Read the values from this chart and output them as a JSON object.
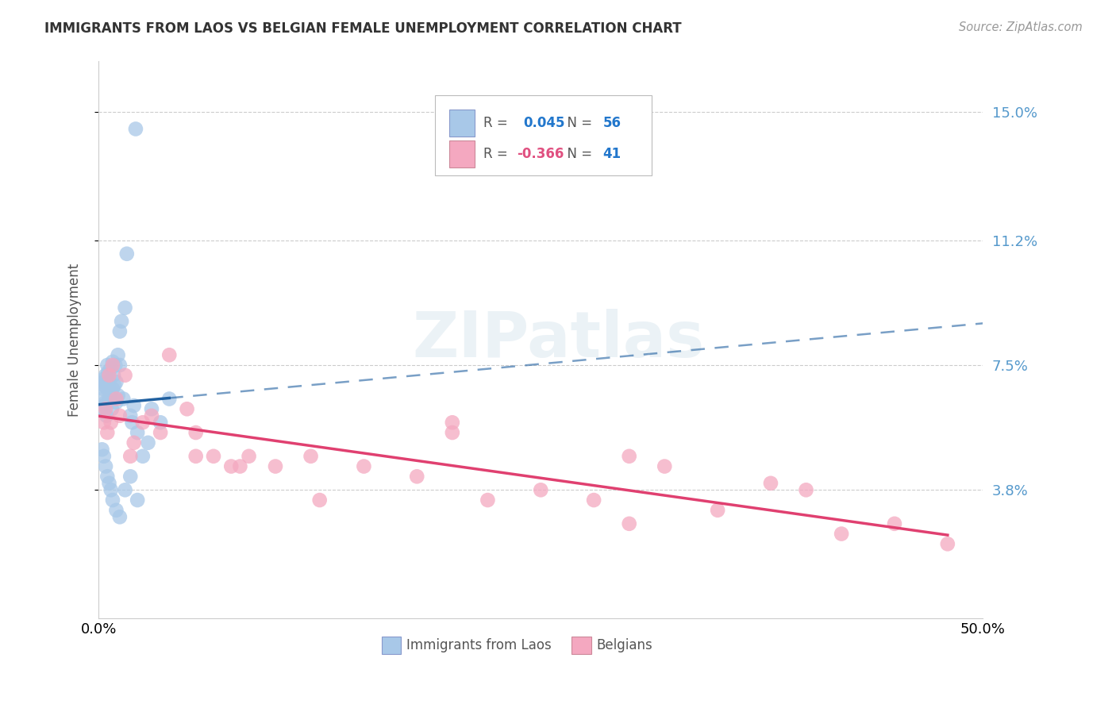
{
  "title": "IMMIGRANTS FROM LAOS VS BELGIAN FEMALE UNEMPLOYMENT CORRELATION CHART",
  "source": "Source: ZipAtlas.com",
  "ylabel": "Female Unemployment",
  "ytick_labels": [
    "3.8%",
    "7.5%",
    "11.2%",
    "15.0%"
  ],
  "ytick_values": [
    3.8,
    7.5,
    11.2,
    15.0
  ],
  "xlim": [
    0.0,
    50.0
  ],
  "ylim": [
    0.0,
    16.5
  ],
  "legend_blue_r": "0.045",
  "legend_blue_n": "56",
  "legend_pink_r": "-0.366",
  "legend_pink_n": "41",
  "legend_blue_label": "Immigrants from Laos",
  "legend_pink_label": "Belgians",
  "blue_color": "#a8c8e8",
  "pink_color": "#f4a8c0",
  "blue_line_color": "#2060a0",
  "pink_line_color": "#e04070",
  "watermark": "ZIPatlas",
  "background_color": "#ffffff",
  "blue_x": [
    0.15,
    0.2,
    0.25,
    0.3,
    0.3,
    0.35,
    0.35,
    0.4,
    0.4,
    0.45,
    0.5,
    0.5,
    0.55,
    0.6,
    0.6,
    0.65,
    0.7,
    0.7,
    0.75,
    0.8,
    0.8,
    0.85,
    0.9,
    0.95,
    1.0,
    1.0,
    1.1,
    1.2,
    1.2,
    1.3,
    1.4,
    1.5,
    1.6,
    1.8,
    1.9,
    2.0,
    2.1,
    2.2,
    2.5,
    2.8,
    0.2,
    0.3,
    0.4,
    0.5,
    0.6,
    0.7,
    0.8,
    1.0,
    1.2,
    1.5,
    1.8,
    2.2,
    3.0,
    3.5,
    4.0,
    1.1
  ],
  "blue_y": [
    6.2,
    6.5,
    6.8,
    6.9,
    7.0,
    7.1,
    6.3,
    6.4,
    7.2,
    6.0,
    7.5,
    6.8,
    7.3,
    6.5,
    7.0,
    6.6,
    6.7,
    7.4,
    6.2,
    6.8,
    7.6,
    7.2,
    6.9,
    7.5,
    7.0,
    6.4,
    7.8,
    7.5,
    8.5,
    8.8,
    6.5,
    9.2,
    10.8,
    6.0,
    5.8,
    6.3,
    14.5,
    5.5,
    4.8,
    5.2,
    5.0,
    4.8,
    4.5,
    4.2,
    4.0,
    3.8,
    3.5,
    3.2,
    3.0,
    3.8,
    4.2,
    3.5,
    6.2,
    5.8,
    6.5,
    6.6
  ],
  "pink_x": [
    0.3,
    0.4,
    0.5,
    0.6,
    0.7,
    0.8,
    1.0,
    1.2,
    1.5,
    1.8,
    2.0,
    2.5,
    3.0,
    3.5,
    4.0,
    5.0,
    5.5,
    6.5,
    7.5,
    8.5,
    10.0,
    12.0,
    15.0,
    18.0,
    20.0,
    22.0,
    25.0,
    28.0,
    30.0,
    32.0,
    35.0,
    38.0,
    40.0,
    42.0,
    45.0,
    48.0,
    5.5,
    8.0,
    12.5,
    20.0,
    30.0
  ],
  "pink_y": [
    5.8,
    6.2,
    5.5,
    7.2,
    5.8,
    7.5,
    6.5,
    6.0,
    7.2,
    4.8,
    5.2,
    5.8,
    6.0,
    5.5,
    7.8,
    6.2,
    5.5,
    4.8,
    4.5,
    4.8,
    4.5,
    4.8,
    4.5,
    4.2,
    5.8,
    3.5,
    3.8,
    3.5,
    4.8,
    4.5,
    3.2,
    4.0,
    3.8,
    2.5,
    2.8,
    2.2,
    4.8,
    4.5,
    3.5,
    5.5,
    2.8
  ]
}
